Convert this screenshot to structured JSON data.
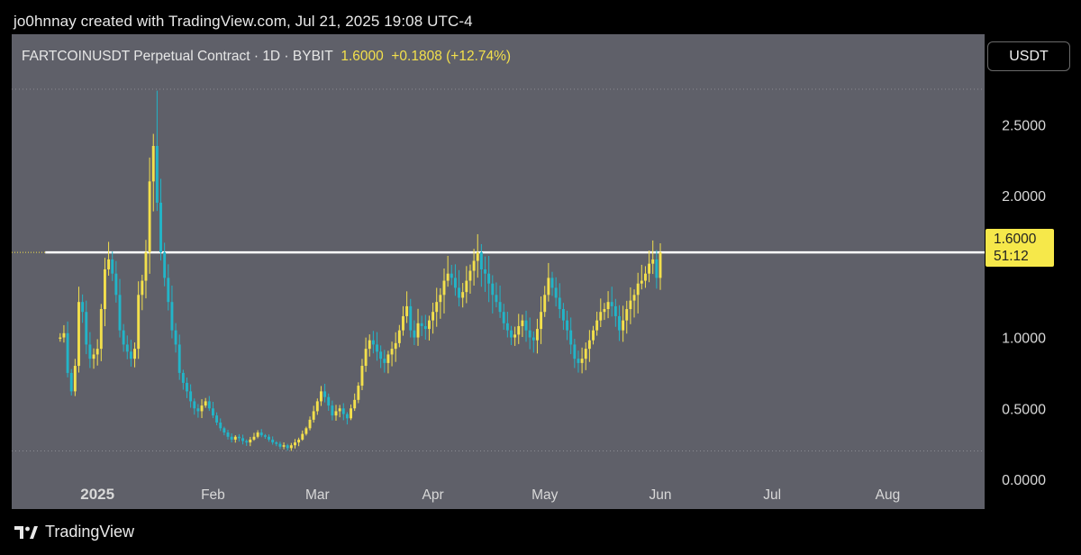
{
  "header": {
    "text": "jo0hnnay created with TradingView.com, Jul 21, 2025 19:08 UTC-4"
  },
  "legend": {
    "symbol": "FARTCOINUSDT Perpetual Contract · 1D · BYBIT",
    "last": "1.6000",
    "change": "+0.1808 (+12.74%)"
  },
  "currency_button": "USDT",
  "price_tag": {
    "price": "1.6000",
    "countdown": "51:12"
  },
  "footer": {
    "brand": "TradingView"
  },
  "colors": {
    "up": "#f3e04c",
    "down": "#22b5c8",
    "background": "#5f6069",
    "resistance": "#ffffff"
  },
  "chart_data": {
    "type": "candlestick",
    "ylim": [
      0,
      2.75
    ],
    "y_ticks": [
      "0.0000",
      "0.5000",
      "1.0000",
      "1.6000",
      "2.0000",
      "2.5000"
    ],
    "y_tick_values": [
      0,
      0.5,
      1.0,
      1.6,
      2.0,
      2.5
    ],
    "x_ticks": [
      "2025",
      "Feb",
      "Mar",
      "Apr",
      "May",
      "Jun",
      "Jul",
      "Aug"
    ],
    "x_tick_dates": [
      "2025-01-01",
      "2025-02-01",
      "2025-03-01",
      "2025-04-01",
      "2025-05-01",
      "2025-06-01",
      "2025-07-01",
      "2025-08-01"
    ],
    "date_range": [
      "2024-12-09",
      "2025-08-27"
    ],
    "first_candle_date": "2024-12-22",
    "last_price": 1.6,
    "resistance_level": 1.6,
    "period_high": 2.74,
    "period_low": 0.2,
    "close_series_start_value": 1.0,
    "close_series_step": "daily",
    "closes": [
      1.0,
      1.03,
      0.75,
      0.62,
      0.8,
      1.25,
      1.18,
      0.95,
      0.85,
      0.88,
      0.92,
      1.2,
      1.48,
      1.55,
      1.45,
      1.3,
      1.05,
      0.95,
      0.9,
      0.85,
      0.92,
      1.3,
      1.4,
      1.6,
      2.1,
      2.35,
      1.95,
      1.6,
      1.42,
      1.25,
      1.05,
      0.95,
      0.75,
      0.68,
      0.62,
      0.55,
      0.5,
      0.48,
      0.52,
      0.55,
      0.5,
      0.45,
      0.4,
      0.36,
      0.33,
      0.3,
      0.28,
      0.3,
      0.29,
      0.27,
      0.26,
      0.28,
      0.3,
      0.33,
      0.31,
      0.3,
      0.28,
      0.26,
      0.25,
      0.23,
      0.24,
      0.22,
      0.24,
      0.26,
      0.28,
      0.32,
      0.36,
      0.42,
      0.48,
      0.55,
      0.62,
      0.58,
      0.52,
      0.45,
      0.48,
      0.5,
      0.46,
      0.43,
      0.5,
      0.56,
      0.66,
      0.8,
      0.92,
      0.98,
      0.95,
      0.9,
      0.85,
      0.82,
      0.88,
      0.92,
      0.96,
      1.05,
      1.15,
      1.22,
      1.05,
      1.0,
      1.1,
      1.08,
      1.06,
      1.12,
      1.18,
      1.25,
      1.3,
      1.4,
      1.45,
      1.42,
      1.35,
      1.28,
      1.32,
      1.4,
      1.47,
      1.54,
      1.6,
      1.48,
      1.45,
      1.38,
      1.3,
      1.25,
      1.18,
      1.1,
      1.05,
      1.0,
      1.02,
      1.08,
      1.12,
      1.05,
      1.0,
      0.98,
      1.06,
      1.18,
      1.3,
      1.42,
      1.35,
      1.28,
      1.2,
      1.12,
      1.05,
      0.95,
      0.85,
      0.82,
      0.85,
      0.92,
      0.98,
      1.05,
      1.12,
      1.18,
      1.2,
      1.25,
      1.22,
      1.15,
      1.05,
      1.12,
      1.2,
      1.26,
      1.3,
      1.38,
      1.4,
      1.45,
      1.52,
      1.55,
      1.42,
      1.6
    ]
  }
}
